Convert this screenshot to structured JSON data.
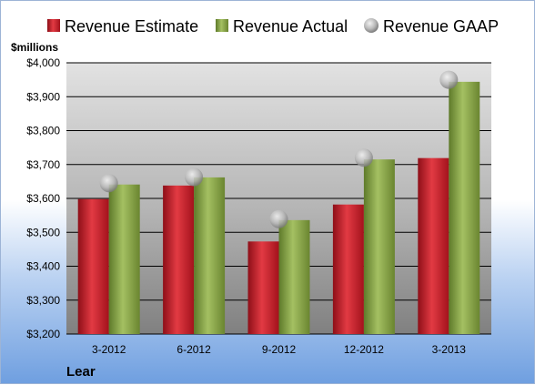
{
  "chart_data": {
    "type": "bar",
    "title": "",
    "ylabel": "$millions",
    "xlabel": "",
    "company": "Lear",
    "categories": [
      "3-2012",
      "6-2012",
      "9-2012",
      "12-2012",
      "3-2013"
    ],
    "series": [
      {
        "name": "Revenue Estimate",
        "type": "bar",
        "color": "#cc1f2b",
        "values": [
          3598,
          3638,
          3473,
          3582,
          3719
        ]
      },
      {
        "name": "Revenue Actual",
        "type": "bar",
        "color": "#8da84c",
        "values": [
          3641,
          3662,
          3536,
          3715,
          3944
        ]
      },
      {
        "name": "Revenue GAAP",
        "type": "marker",
        "color": "#b9b9b9",
        "values": [
          3645,
          3663,
          3539,
          3720,
          3950
        ]
      }
    ],
    "ylim": [
      3200,
      4000
    ],
    "yticks": [
      3200,
      3300,
      3400,
      3500,
      3600,
      3700,
      3800,
      3900,
      4000
    ],
    "ytick_labels": [
      "$3,200",
      "$3,300",
      "$3,400",
      "$3,500",
      "$3,600",
      "$3,700",
      "$3,800",
      "$3,900",
      "$4,000"
    ],
    "grid": true,
    "legend_position": "top"
  }
}
